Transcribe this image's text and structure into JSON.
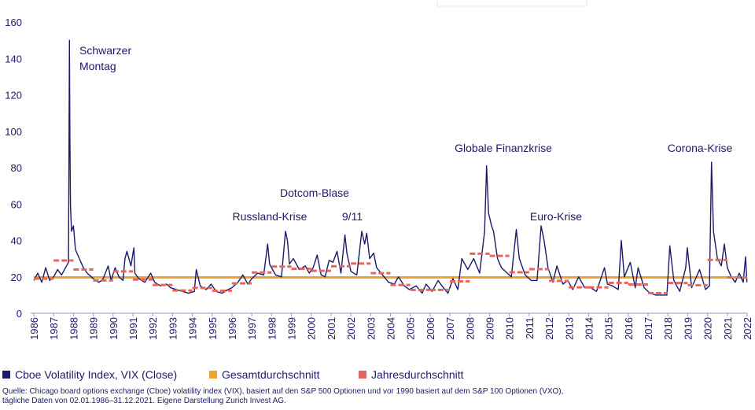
{
  "chart_data": {
    "type": "line",
    "xlim": [
      1986,
      2022
    ],
    "ylim": [
      0,
      160
    ],
    "xticks": [
      1986,
      1987,
      1988,
      1989,
      1990,
      1991,
      1992,
      1993,
      1994,
      1995,
      1996,
      1997,
      1998,
      1999,
      2000,
      2001,
      2002,
      2003,
      2004,
      2005,
      2006,
      2007,
      2008,
      2009,
      2010,
      2011,
      2012,
      2013,
      2014,
      2015,
      2016,
      2017,
      2018,
      2019,
      2020,
      2021,
      2022
    ],
    "yticks": [
      0,
      20,
      40,
      60,
      80,
      100,
      120,
      140,
      160
    ],
    "x": [
      1986.0,
      1986.2,
      1986.4,
      1986.6,
      1986.8,
      1987.0,
      1987.2,
      1987.4,
      1987.6,
      1987.75,
      1987.8,
      1987.82,
      1987.85,
      1987.9,
      1988.0,
      1988.1,
      1988.3,
      1988.5,
      1988.7,
      1988.9,
      1989.1,
      1989.3,
      1989.5,
      1989.75,
      1989.9,
      1990.1,
      1990.3,
      1990.5,
      1990.6,
      1990.7,
      1990.9,
      1991.05,
      1991.1,
      1991.3,
      1991.6,
      1991.9,
      1992.1,
      1992.4,
      1992.7,
      1992.9,
      1993.2,
      1993.5,
      1993.8,
      1994.1,
      1994.2,
      1994.4,
      1994.7,
      1994.95,
      1995.2,
      1995.5,
      1995.8,
      1996.0,
      1996.3,
      1996.55,
      1996.8,
      1997.0,
      1997.3,
      1997.6,
      1997.8,
      1997.9,
      1998.2,
      1998.5,
      1998.7,
      1998.8,
      1998.9,
      1999.1,
      1999.4,
      1999.7,
      1999.9,
      2000.1,
      2000.3,
      2000.5,
      2000.7,
      2000.9,
      2001.1,
      2001.3,
      2001.5,
      2001.7,
      2001.8,
      2002.0,
      2002.3,
      2002.55,
      2002.7,
      2002.8,
      2002.95,
      2003.15,
      2003.3,
      2003.6,
      2003.9,
      2004.2,
      2004.4,
      2004.7,
      2004.95,
      2005.3,
      2005.6,
      2005.8,
      2006.1,
      2006.4,
      2006.6,
      2006.9,
      2007.15,
      2007.4,
      2007.6,
      2007.9,
      2008.2,
      2008.5,
      2008.75,
      2008.85,
      2008.95,
      2009.1,
      2009.2,
      2009.4,
      2009.6,
      2009.9,
      2010.1,
      2010.35,
      2010.5,
      2010.8,
      2011.1,
      2011.4,
      2011.6,
      2011.75,
      2011.95,
      2012.2,
      2012.4,
      2012.7,
      2012.95,
      2013.2,
      2013.5,
      2013.8,
      2014.1,
      2014.4,
      2014.8,
      2014.95,
      2015.2,
      2015.5,
      2015.65,
      2015.8,
      2016.1,
      2016.35,
      2016.5,
      2016.8,
      2017.1,
      2017.4,
      2017.7,
      2017.95,
      2018.1,
      2018.3,
      2018.6,
      2018.9,
      2018.98,
      2019.2,
      2019.6,
      2019.9,
      2020.1,
      2020.2,
      2020.3,
      2020.5,
      2020.7,
      2020.85,
      2021.0,
      2021.2,
      2021.4,
      2021.6,
      2021.8,
      2021.92,
      2021.99
    ],
    "series": [
      {
        "name": "Cboe Volatility Index, VIX (Close)",
        "color": "#1b1a6b",
        "values": [
          18,
          22,
          17,
          25,
          18,
          20,
          24,
          21,
          25,
          28,
          150,
          95,
          60,
          45,
          48,
          35,
          30,
          25,
          22,
          20,
          18,
          17,
          19,
          26,
          18,
          25,
          20,
          18,
          30,
          34,
          26,
          36,
          22,
          19,
          17,
          22,
          17,
          15,
          16,
          14,
          13,
          12,
          11,
          12,
          24,
          15,
          13,
          16,
          12,
          11,
          13,
          14,
          17,
          21,
          16,
          19,
          22,
          21,
          38,
          27,
          21,
          20,
          45,
          40,
          27,
          30,
          24,
          26,
          22,
          25,
          32,
          21,
          20,
          29,
          28,
          34,
          22,
          43,
          33,
          23,
          21,
          45,
          38,
          44,
          30,
          33,
          25,
          21,
          17,
          16,
          20,
          15,
          13,
          15,
          11,
          16,
          12,
          18,
          15,
          11,
          19,
          13,
          30,
          24,
          30,
          22,
          45,
          81,
          55,
          48,
          45,
          30,
          25,
          22,
          20,
          46,
          30,
          21,
          18,
          18,
          48,
          40,
          25,
          17,
          26,
          16,
          18,
          13,
          20,
          14,
          14,
          12,
          25,
          16,
          15,
          13,
          40,
          20,
          28,
          14,
          25,
          14,
          11,
          10,
          10,
          10,
          37,
          18,
          12,
          25,
          36,
          14,
          24,
          13,
          15,
          83,
          45,
          30,
          26,
          38,
          25,
          20,
          17,
          22,
          17,
          31,
          17
        ]
      },
      {
        "name": "Gesamtdurchschnitt",
        "color": "#f0a22e",
        "value": 19.7
      },
      {
        "name": "Jahresdurchschnitt",
        "color": "#e8645c",
        "x": [
          1986,
          1987,
          1988,
          1989,
          1990,
          1991,
          1992,
          1993,
          1994,
          1995,
          1996,
          1997,
          1998,
          1999,
          2000,
          2001,
          2002,
          2003,
          2004,
          2005,
          2006,
          2007,
          2008,
          2009,
          2010,
          2011,
          2012,
          2013,
          2014,
          2015,
          2016,
          2017,
          2018,
          2019,
          2020,
          2021
        ],
        "values": [
          19,
          29,
          24,
          18,
          23,
          18.5,
          15.5,
          12.5,
          13.9,
          12.4,
          16.4,
          22.4,
          25.6,
          24.4,
          23.3,
          25.8,
          27.3,
          22,
          15.5,
          12.8,
          12.8,
          17.5,
          32.7,
          31.5,
          22.5,
          24.2,
          17.8,
          14.2,
          14.2,
          16.7,
          15.8,
          11.1,
          16.6,
          15.4,
          29.3,
          19.7
        ]
      }
    ],
    "annotations": [
      "Schwarzer",
      "Montag",
      "Dotcom-Blase",
      "Russland-Krise",
      "9/11",
      "Globale Finanzkrise",
      "Euro-Krise",
      "Corona-Krise"
    ],
    "source": [
      "Quelle: Chicago board options exchange (Cboe) volatility index (VIX), basiert auf den S&P 500 Optionen und vor 1990 basiert auf dem S&P 100 Optionen (VXO),",
      "tägliche Daten von 02.01.1986–31.12.2021. Eigene Darstellung Zurich Invest AG."
    ]
  }
}
